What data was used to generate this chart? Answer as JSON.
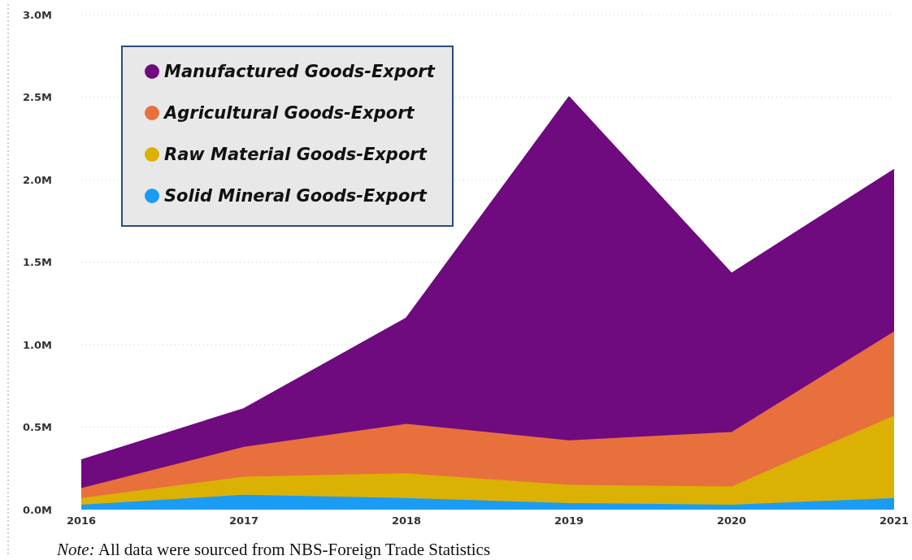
{
  "chart_data": {
    "type": "area",
    "stacked": true,
    "categories": [
      "2016",
      "2017",
      "2018",
      "2019",
      "2020",
      "2021"
    ],
    "series": [
      {
        "name": "Solid Mineral Goods-Export",
        "color": "#1a9cf5",
        "values": [
          0.03,
          0.09,
          0.07,
          0.04,
          0.03,
          0.07
        ]
      },
      {
        "name": "Raw Material Goods-Export",
        "color": "#dbb203",
        "values": [
          0.04,
          0.11,
          0.15,
          0.11,
          0.11,
          0.5
        ]
      },
      {
        "name": "Agricultural Goods-Export",
        "color": "#e8703c",
        "values": [
          0.06,
          0.18,
          0.3,
          0.27,
          0.33,
          0.51
        ]
      },
      {
        "name": "Manufactured Goods-Export",
        "color": "#6f0a7f",
        "values": [
          0.17,
          0.23,
          0.64,
          2.08,
          0.96,
          0.98
        ]
      }
    ],
    "ylim": [
      0,
      3
    ],
    "yticks": [
      {
        "value": 0,
        "label": "0.0M"
      },
      {
        "value": 0.5,
        "label": "0.5M"
      },
      {
        "value": 1,
        "label": "1.0M"
      },
      {
        "value": 1.5,
        "label": "1.5M"
      },
      {
        "value": 2,
        "label": "2.0M"
      },
      {
        "value": 2.5,
        "label": "2.5M"
      },
      {
        "value": 3,
        "label": "3.0M"
      }
    ],
    "grid": "y",
    "legend": "top left",
    "annotations": [
      "Note: All data were sourced from NBS-Foreign Trade Statistics"
    ]
  }
}
